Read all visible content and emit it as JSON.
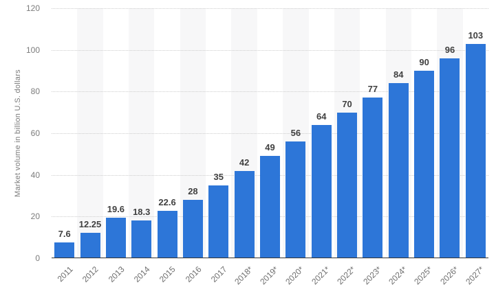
{
  "chart_data": {
    "type": "bar",
    "title": "",
    "xlabel": "",
    "ylabel": "Market volume in billion U.S. dollars",
    "categories": [
      "2011",
      "2012",
      "2013",
      "2014",
      "2015",
      "2016",
      "2017",
      "2018*",
      "2019*",
      "2020*",
      "2021*",
      "2022*",
      "2023*",
      "2024*",
      "2025*",
      "2026*",
      "2027*"
    ],
    "values": [
      7.6,
      12.25,
      19.6,
      18.3,
      22.6,
      28,
      35,
      42,
      49,
      56,
      64,
      70,
      77,
      84,
      90,
      96,
      103
    ],
    "ylim": [
      0,
      120
    ],
    "yticks": [
      0,
      20,
      40,
      60,
      80,
      100,
      120
    ],
    "grid": "horizontal-dotted",
    "legend": "none",
    "column_banding": "alternating",
    "colors": {
      "bar": "#2d76d8",
      "stripe": "#f7f7f8",
      "gridline": "#cccccc",
      "axis_line": "#333333",
      "tick_label": "#7b7b7b",
      "x_tick_label": "#6e6e6e",
      "value_label": "#404040",
      "background": "#ffffff"
    }
  }
}
